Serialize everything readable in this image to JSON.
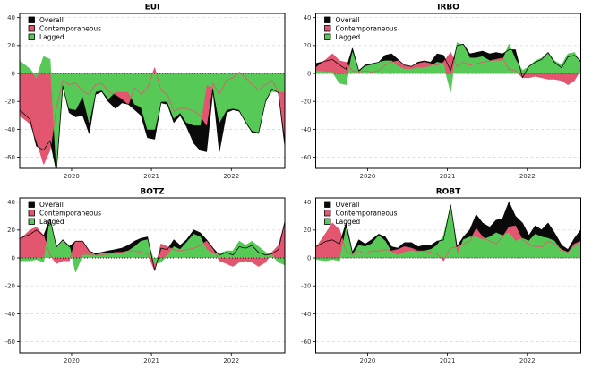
{
  "figure": {
    "background": "#ffffff",
    "colors": {
      "overall": "#0a0a0a",
      "contemporaneous": "#e2566f",
      "lagged": "#57c957",
      "grid": "#d4d4d4",
      "zero_line": "#111111",
      "axis_text": "#333333",
      "panel_border": "#000000"
    }
  },
  "legend": {
    "position": "top-left",
    "labels": [
      "Overall",
      "Contemporaneous",
      "Lagged"
    ]
  },
  "axes": {
    "ylim": [
      -68,
      43
    ],
    "xlim": [
      2019.35,
      2022.67
    ],
    "y_ticks": [
      "40",
      "20",
      "0",
      "-20",
      "-40",
      "-60"
    ],
    "y_tick_values": [
      40,
      20,
      0,
      -20,
      -40,
      -60
    ],
    "x_ticks": [
      "2020",
      "2021",
      "2022"
    ],
    "x_tick_values": [
      2020,
      2021,
      2022
    ],
    "grid": "horizontal-dashed",
    "zero_line_style": "dotted"
  },
  "chart_data": [
    {
      "type": "area",
      "title": "EUI",
      "position": "top-left",
      "x": [
        2019.35,
        2019.48,
        2019.56,
        2019.65,
        2019.73,
        2019.81,
        2019.89,
        2019.97,
        2020.05,
        2020.14,
        2020.22,
        2020.3,
        2020.38,
        2020.46,
        2020.55,
        2020.63,
        2020.71,
        2020.79,
        2020.87,
        2020.95,
        2021.04,
        2021.12,
        2021.2,
        2021.28,
        2021.36,
        2021.44,
        2021.53,
        2021.61,
        2021.69,
        2021.77,
        2021.85,
        2021.94,
        2022.02,
        2022.1,
        2022.18,
        2022.26,
        2022.34,
        2022.43,
        2022.51,
        2022.59,
        2022.67
      ],
      "series": [
        {
          "name": "Overall",
          "color": "#0a0a0a",
          "values": [
            -26,
            -33,
            -52,
            -55,
            -48,
            -70,
            -9,
            -28,
            -31,
            -30,
            -43,
            -15,
            -13,
            -20,
            -25,
            -21,
            -22,
            -26,
            -30,
            -46,
            -47,
            -21,
            -22,
            -35,
            -30,
            -38,
            -50,
            -55,
            -56,
            -12,
            -56,
            -28,
            -26,
            -27,
            -35,
            -42,
            -43,
            -20,
            -11,
            -14,
            -52
          ]
        },
        {
          "name": "Contemporaneous",
          "color": "#e2566f",
          "values": [
            -30,
            -36,
            -48,
            -65,
            -55,
            -25,
            -5,
            -8,
            -7,
            -13,
            -15,
            -8,
            -7,
            -13,
            -15,
            -18,
            -22,
            -10,
            -15,
            -10,
            4,
            -12,
            -15,
            -27,
            -25,
            -25,
            -27,
            -30,
            -37,
            -7,
            -15,
            -5,
            -3,
            1,
            -3,
            -8,
            -12,
            -8,
            -5,
            -13,
            -45
          ]
        },
        {
          "name": "Lagged",
          "color": "#57c957",
          "values": [
            9,
            3,
            -3,
            12,
            10,
            -68,
            -9,
            -25,
            -26,
            -16,
            -35,
            -13,
            -12,
            -18,
            -13,
            -13,
            -13,
            -22,
            -24,
            -40,
            -40,
            -20,
            -20,
            -32,
            -28,
            -35,
            -37,
            -37,
            -8,
            -10,
            -35,
            -26,
            -25,
            -26,
            -34,
            -41,
            -42,
            -18,
            -13,
            -13,
            -13
          ]
        }
      ]
    },
    {
      "type": "area",
      "title": "IRBO",
      "position": "top-right",
      "x": [
        2019.35,
        2019.48,
        2019.56,
        2019.65,
        2019.73,
        2019.81,
        2019.89,
        2019.97,
        2020.05,
        2020.14,
        2020.22,
        2020.3,
        2020.38,
        2020.46,
        2020.55,
        2020.63,
        2020.71,
        2020.79,
        2020.87,
        2020.95,
        2021.04,
        2021.12,
        2021.2,
        2021.28,
        2021.36,
        2021.44,
        2021.53,
        2021.61,
        2021.69,
        2021.77,
        2021.85,
        2021.94,
        2022.02,
        2022.1,
        2022.18,
        2022.26,
        2022.34,
        2022.43,
        2022.51,
        2022.59,
        2022.67
      ],
      "series": [
        {
          "name": "Overall",
          "color": "#0a0a0a",
          "values": [
            7,
            9,
            10,
            6,
            3,
            18,
            2,
            6,
            7,
            8,
            13,
            14,
            10,
            6,
            5,
            8,
            9,
            8,
            14,
            13,
            2,
            20,
            21,
            14,
            15,
            16,
            14,
            15,
            14,
            17,
            17,
            -3,
            5,
            8,
            10,
            15,
            8,
            4,
            12,
            13,
            9
          ]
        },
        {
          "name": "Contemporaneous",
          "color": "#e2566f",
          "values": [
            4,
            10,
            14,
            9,
            8,
            2,
            1,
            2,
            1,
            2,
            6,
            8,
            9,
            6,
            5,
            7,
            8,
            7,
            6,
            8,
            15,
            5,
            8,
            6,
            7,
            8,
            9,
            10,
            11,
            3,
            2,
            -3,
            -3,
            -2,
            -3,
            -4,
            -4,
            -5,
            -8,
            -5,
            3
          ]
        },
        {
          "name": "Lagged",
          "color": "#57c957",
          "values": [
            2,
            1,
            1,
            -7,
            -8,
            15,
            1,
            5,
            6,
            8,
            9,
            9,
            5,
            3,
            3,
            4,
            4,
            5,
            8,
            7,
            -13,
            22,
            20,
            11,
            11,
            12,
            9,
            9,
            9,
            21,
            10,
            2,
            5,
            9,
            11,
            15,
            9,
            6,
            14,
            15,
            7
          ]
        }
      ]
    },
    {
      "type": "area",
      "title": "BOTZ",
      "position": "bottom-left",
      "x": [
        2019.35,
        2019.48,
        2019.56,
        2019.65,
        2019.73,
        2019.81,
        2019.89,
        2019.97,
        2020.05,
        2020.14,
        2020.22,
        2020.3,
        2020.38,
        2020.46,
        2020.55,
        2020.63,
        2020.71,
        2020.79,
        2020.87,
        2020.95,
        2021.04,
        2021.12,
        2021.2,
        2021.28,
        2021.36,
        2021.44,
        2021.53,
        2021.61,
        2021.69,
        2021.77,
        2021.85,
        2021.94,
        2022.02,
        2022.1,
        2022.18,
        2022.26,
        2022.34,
        2022.43,
        2022.51,
        2022.59,
        2022.67
      ],
      "series": [
        {
          "name": "Overall",
          "color": "#0a0a0a",
          "values": [
            14,
            17,
            20,
            16,
            28,
            8,
            13,
            8,
            12,
            12,
            5,
            3,
            4,
            5,
            6,
            7,
            9,
            12,
            14,
            15,
            -9,
            7,
            6,
            13,
            9,
            13,
            20,
            18,
            13,
            7,
            2,
            4,
            2,
            8,
            7,
            9,
            4,
            2,
            3,
            6,
            26
          ]
        },
        {
          "name": "Contemporaneous",
          "color": "#e2566f",
          "values": [
            13,
            20,
            22,
            16,
            2,
            -4,
            -2,
            -2,
            12,
            12,
            5,
            2,
            2,
            3,
            4,
            4,
            5,
            5,
            4,
            3,
            -9,
            10,
            8,
            6,
            5,
            6,
            7,
            9,
            12,
            6,
            -2,
            -4,
            -6,
            -3,
            -2,
            -3,
            -6,
            -3,
            4,
            9,
            25
          ]
        },
        {
          "name": "Lagged",
          "color": "#57c957",
          "values": [
            -2,
            -2,
            -1,
            -3,
            28,
            7,
            13,
            9,
            -10,
            2,
            2,
            2,
            3,
            3,
            3,
            4,
            5,
            8,
            12,
            13,
            -4,
            -3,
            2,
            8,
            6,
            11,
            17,
            15,
            6,
            3,
            3,
            5,
            5,
            12,
            9,
            12,
            8,
            4,
            2,
            -3,
            -5
          ]
        }
      ]
    },
    {
      "type": "area",
      "title": "ROBT",
      "position": "bottom-right",
      "x": [
        2019.35,
        2019.48,
        2019.56,
        2019.65,
        2019.73,
        2019.81,
        2019.89,
        2019.97,
        2020.05,
        2020.14,
        2020.22,
        2020.3,
        2020.38,
        2020.46,
        2020.55,
        2020.63,
        2020.71,
        2020.79,
        2020.87,
        2020.95,
        2021.04,
        2021.12,
        2021.2,
        2021.28,
        2021.36,
        2021.44,
        2021.53,
        2021.61,
        2021.69,
        2021.77,
        2021.85,
        2021.94,
        2022.02,
        2022.1,
        2022.18,
        2022.26,
        2022.34,
        2022.43,
        2022.51,
        2022.59,
        2022.67
      ],
      "series": [
        {
          "name": "Overall",
          "color": "#0a0a0a",
          "values": [
            8,
            12,
            13,
            10,
            25,
            4,
            13,
            10,
            13,
            17,
            15,
            8,
            7,
            11,
            11,
            8,
            9,
            9,
            12,
            13,
            38,
            8,
            15,
            20,
            31,
            25,
            22,
            27,
            28,
            40,
            30,
            25,
            16,
            23,
            20,
            25,
            18,
            9,
            6,
            14,
            20
          ]
        },
        {
          "name": "Contemporaneous",
          "color": "#e2566f",
          "values": [
            7,
            18,
            25,
            20,
            5,
            2,
            5,
            3,
            5,
            5,
            6,
            5,
            6,
            8,
            7,
            5,
            5,
            4,
            3,
            -2,
            7,
            8,
            10,
            12,
            21,
            15,
            12,
            10,
            15,
            22,
            23,
            13,
            10,
            8,
            8,
            12,
            10,
            6,
            4,
            10,
            12
          ]
        },
        {
          "name": "Lagged",
          "color": "#57c957",
          "values": [
            -1,
            -2,
            -1,
            -2,
            21,
            2,
            9,
            8,
            10,
            16,
            12,
            4,
            2,
            4,
            5,
            4,
            5,
            6,
            9,
            16,
            37,
            2,
            13,
            15,
            15,
            13,
            15,
            18,
            16,
            18,
            12,
            14,
            12,
            17,
            15,
            14,
            12,
            5,
            4,
            8,
            12
          ]
        }
      ]
    }
  ]
}
